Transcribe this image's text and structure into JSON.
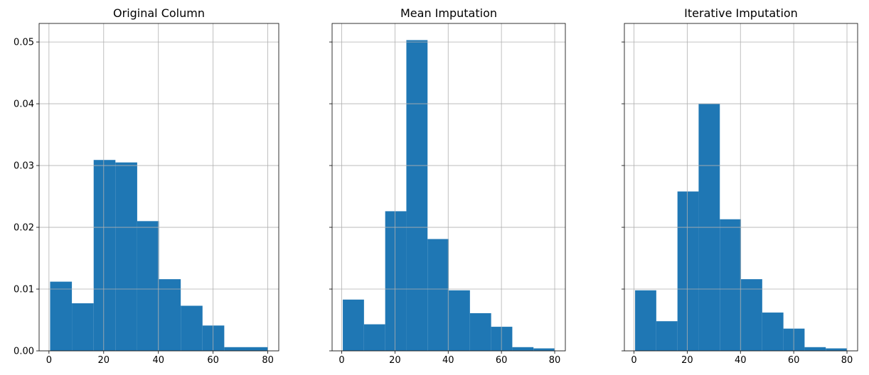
{
  "chart_data": [
    {
      "type": "bar",
      "title": "Original Column",
      "bin_edges": [
        0.42,
        8.38,
        16.34,
        24.29,
        32.25,
        40.21,
        48.17,
        56.13,
        64.08,
        72.04,
        80.0
      ],
      "values": [
        0.0112,
        0.0077,
        0.0309,
        0.0305,
        0.021,
        0.0116,
        0.0073,
        0.0041,
        0.0006,
        0.0006
      ],
      "xlim": [
        -3.6,
        84.0
      ],
      "ylim": [
        0,
        0.053
      ],
      "xticks": [
        0,
        20,
        40,
        60,
        80
      ],
      "grid": true,
      "color": "#1f77b4"
    },
    {
      "type": "bar",
      "title": "Mean Imputation",
      "bin_edges": [
        0.42,
        8.38,
        16.34,
        24.29,
        32.25,
        40.21,
        48.17,
        56.13,
        64.08,
        72.04,
        80.0
      ],
      "values": [
        0.0083,
        0.0043,
        0.0226,
        0.0503,
        0.0181,
        0.0098,
        0.0061,
        0.0039,
        0.0006,
        0.0004
      ],
      "xlim": [
        -3.6,
        84.0
      ],
      "ylim": [
        0,
        0.053
      ],
      "xticks": [
        0,
        20,
        40,
        60,
        80
      ],
      "grid": true,
      "color": "#1f77b4"
    },
    {
      "type": "bar",
      "title": "Iterative Imputation",
      "bin_edges": [
        0.42,
        8.38,
        16.34,
        24.29,
        32.25,
        40.21,
        48.17,
        56.13,
        64.08,
        72.04,
        80.0
      ],
      "values": [
        0.0098,
        0.0048,
        0.0258,
        0.04,
        0.0213,
        0.0116,
        0.0062,
        0.0036,
        0.0006,
        0.0004
      ],
      "xlim": [
        -3.6,
        84.0
      ],
      "ylim": [
        0,
        0.053
      ],
      "xticks": [
        0,
        20,
        40,
        60,
        80
      ],
      "grid": true,
      "color": "#1f77b4"
    }
  ],
  "shared_y": {
    "yticks": [
      0.0,
      0.01,
      0.02,
      0.03,
      0.04,
      0.05
    ],
    "ytick_labels": [
      "0.00",
      "0.01",
      "0.02",
      "0.03",
      "0.04",
      "0.05"
    ]
  }
}
